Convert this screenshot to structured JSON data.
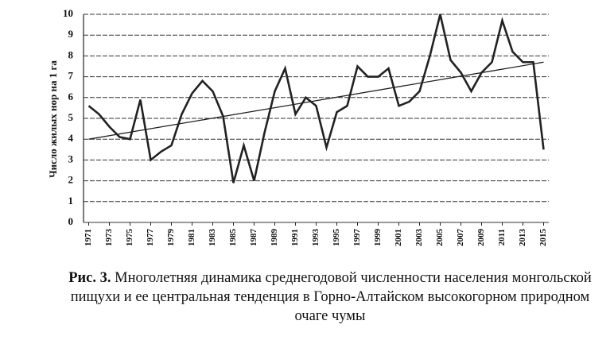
{
  "chart_data": {
    "type": "line",
    "y_label": "Число жилых нор на 1 га",
    "x": [
      1971,
      1972,
      1973,
      1974,
      1975,
      1976,
      1977,
      1978,
      1979,
      1980,
      1981,
      1982,
      1983,
      1984,
      1985,
      1986,
      1987,
      1988,
      1989,
      1990,
      1991,
      1992,
      1993,
      1994,
      1995,
      1996,
      1997,
      1998,
      1999,
      2000,
      2001,
      2002,
      2003,
      2004,
      2005,
      2006,
      2007,
      2008,
      2009,
      2010,
      2011,
      2012,
      2013,
      2014,
      2015
    ],
    "values": [
      5.6,
      5.2,
      4.6,
      4.1,
      4.0,
      5.9,
      3.0,
      3.4,
      3.7,
      5.2,
      6.2,
      6.8,
      6.3,
      5.1,
      1.9,
      3.7,
      2.0,
      4.3,
      6.3,
      7.4,
      5.2,
      6.0,
      5.6,
      3.6,
      5.3,
      5.6,
      7.5,
      7.0,
      7.0,
      7.4,
      5.6,
      5.8,
      6.3,
      8.0,
      10.0,
      7.8,
      7.2,
      6.3,
      7.2,
      7.7,
      9.7,
      8.2,
      7.7,
      7.7,
      3.5
    ],
    "color": "#222222",
    "trend": {
      "x": [
        1971,
        2015
      ],
      "values": [
        4.0,
        7.7
      ]
    },
    "xlim": [
      1970.5,
      2015.5
    ],
    "xticks": [
      1971,
      1973,
      1975,
      1977,
      1979,
      1981,
      1983,
      1985,
      1987,
      1989,
      1991,
      1993,
      1995,
      1997,
      1999,
      2001,
      2003,
      2005,
      2007,
      2009,
      2011,
      2013,
      2015
    ],
    "ylim": [
      0,
      10
    ],
    "yticks": [
      0,
      1,
      2,
      3,
      4,
      5,
      6,
      7,
      8,
      9,
      10
    ],
    "grid": true,
    "caption_label": "Рис. 3.",
    "caption_text": "Многолетняя динамика среднегодовой численности населения монгольской пищухи и ее центральная тенденция в Горно-Алтайском высокогорном природном очаге чумы"
  }
}
